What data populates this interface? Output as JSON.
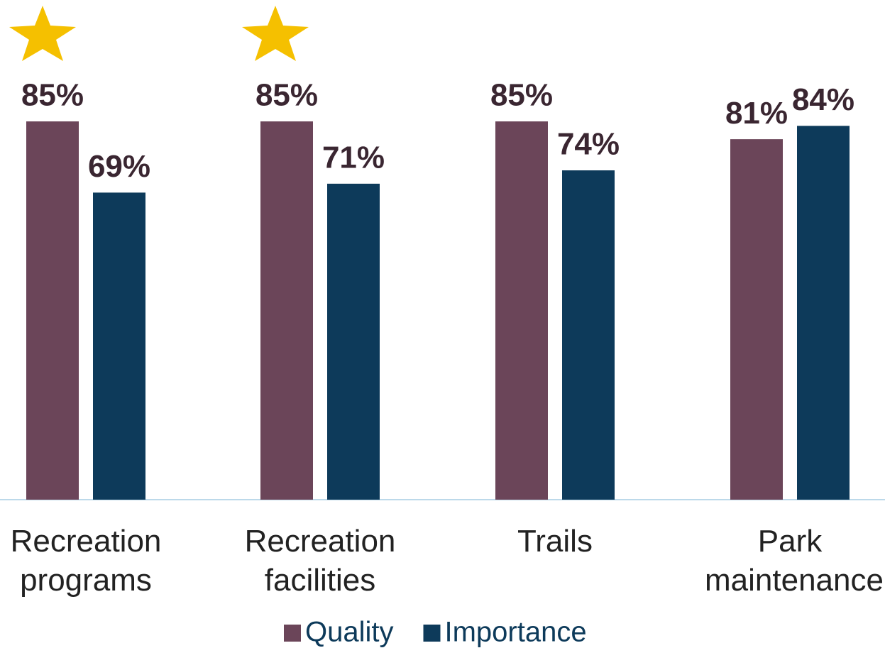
{
  "chart_data": {
    "type": "bar",
    "categories": [
      "Recreation programs",
      "Recreation facilities",
      "Trails",
      "Park maintenance"
    ],
    "series": [
      {
        "name": "Quality",
        "color": "#6b4559",
        "values": [
          85,
          85,
          85,
          81
        ],
        "value_labels": [
          "85%",
          "85%",
          "85%",
          "81%"
        ]
      },
      {
        "name": "Importance",
        "color": "#0d3a5a",
        "values": [
          69,
          71,
          74,
          84
        ],
        "value_labels": [
          "69%",
          "71%",
          "74%",
          "84%"
        ]
      }
    ],
    "ylim": [
      0,
      100
    ],
    "legend": "bottom"
  }
}
